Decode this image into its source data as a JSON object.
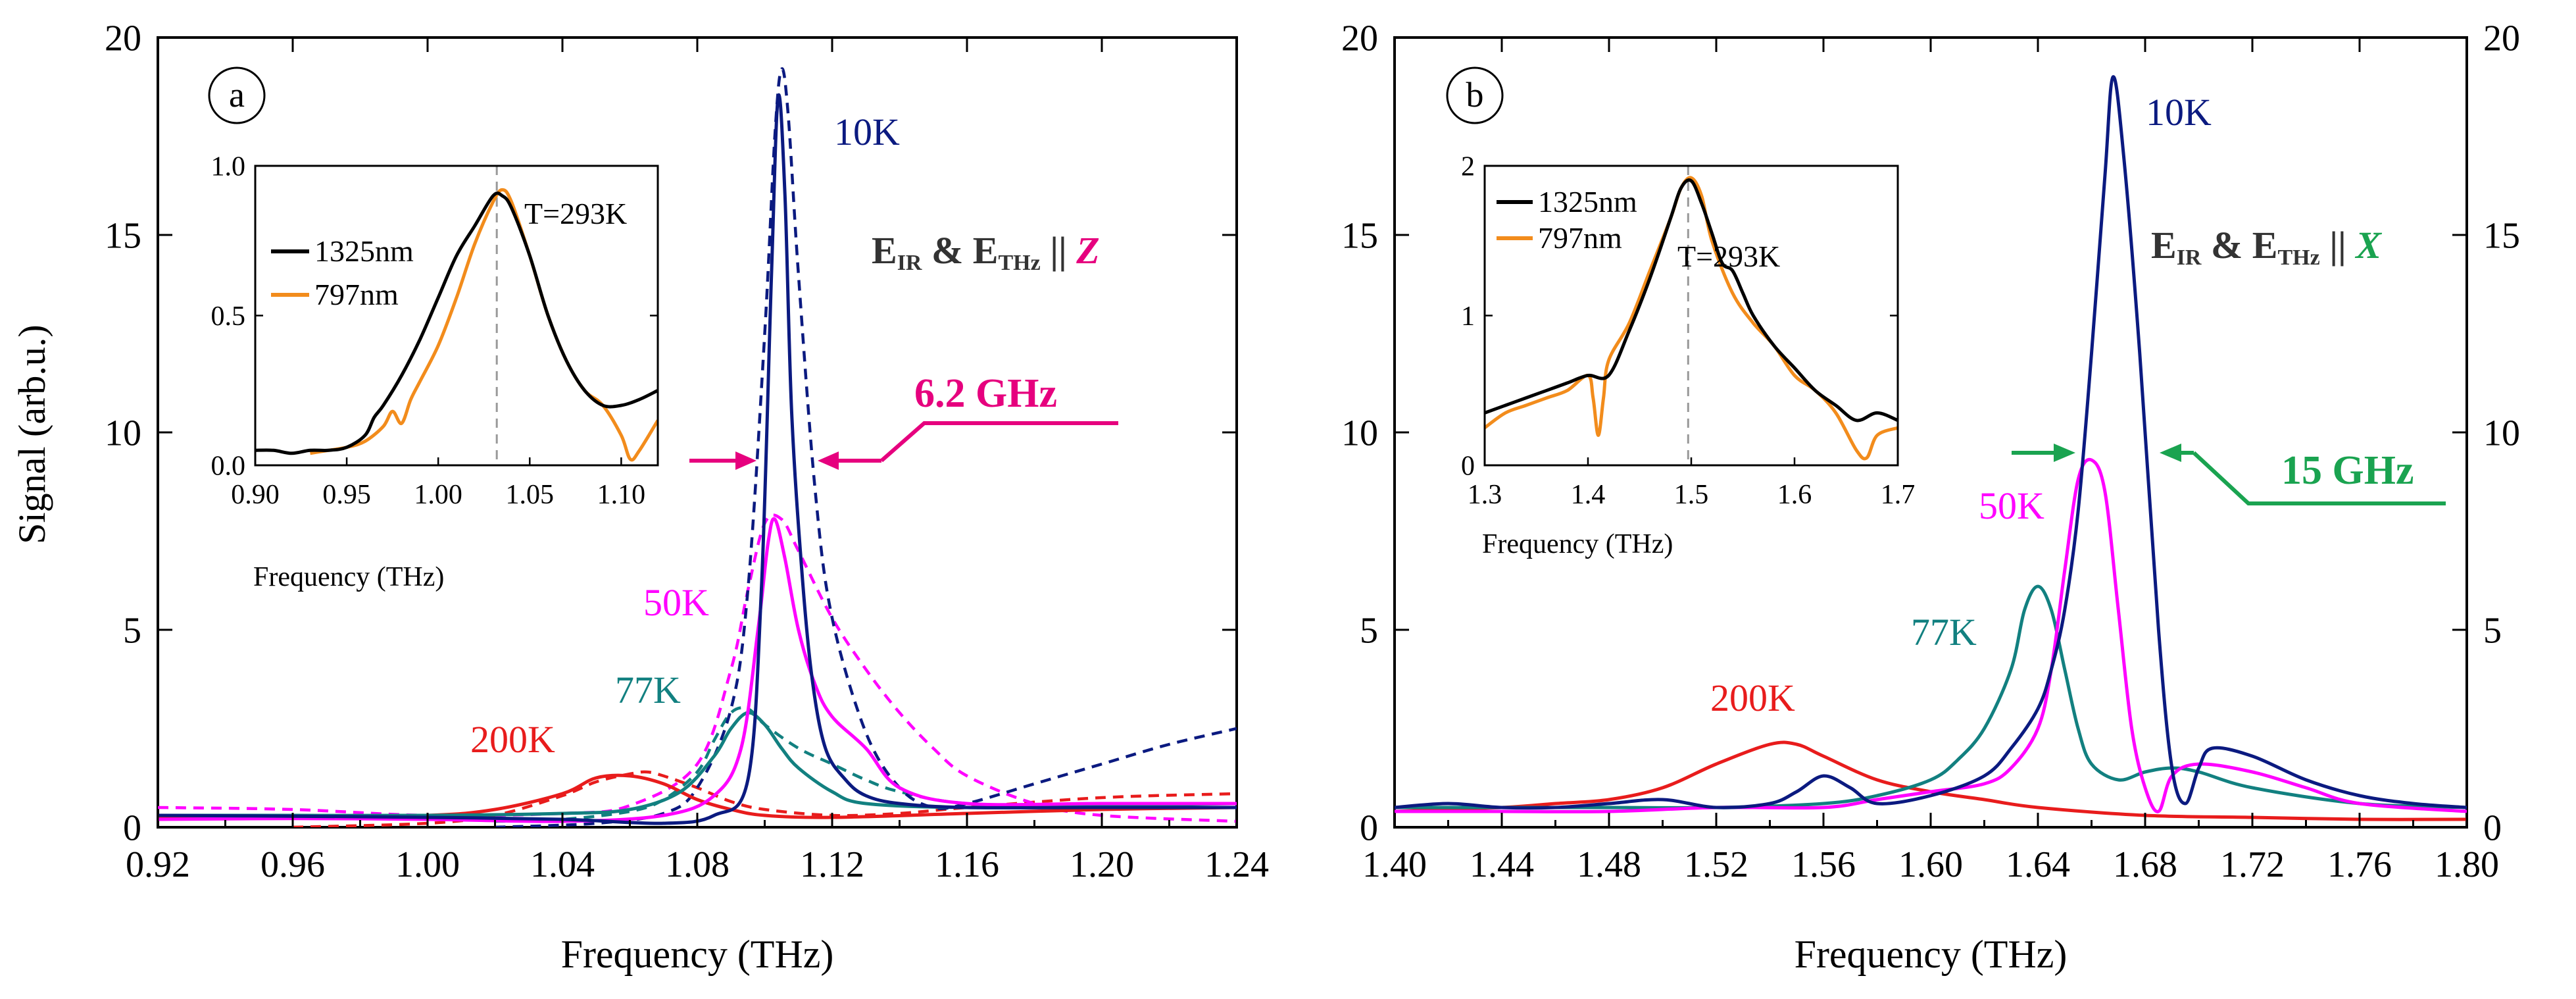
{
  "chart_data": [
    {
      "id": "a",
      "type": "line",
      "panel_label": "a",
      "xlabel": "Frequency (THz)",
      "ylabel": "Signal (arb.u.)",
      "xlim": [
        0.92,
        1.24
      ],
      "ylim": [
        0,
        20
      ],
      "xticks": [
        "0.92",
        "0.96",
        "1.00",
        "1.04",
        "1.08",
        "1.12",
        "1.16",
        "1.20",
        "1.24"
      ],
      "yticks": [
        "0",
        "5",
        "10",
        "15",
        "20"
      ],
      "annotation": {
        "e1": "E",
        "s1": "IR",
        "amp": " & E",
        "s2": "THz",
        "par": " || ",
        "axis": "Z",
        "color": "#e6007e"
      },
      "width_label": "6.2 GHz",
      "width_color": "#e6007e",
      "series": [
        {
          "name": "10K",
          "color": "#0b1a80",
          "dash": false,
          "label": "10K",
          "x": [
            0.92,
            0.96,
            1.0,
            1.04,
            1.07,
            1.085,
            1.095,
            1.099,
            1.102,
            1.104,
            1.106,
            1.108,
            1.111,
            1.114,
            1.118,
            1.124,
            1.13,
            1.14,
            1.16,
            1.2,
            1.24
          ],
          "y": [
            0.3,
            0.28,
            0.25,
            0.2,
            0.1,
            0.3,
            1.2,
            6.0,
            14.0,
            18.5,
            16.0,
            10.5,
            6.5,
            3.8,
            2.0,
            1.2,
            0.8,
            0.6,
            0.5,
            0.5,
            0.5
          ]
        },
        {
          "name": "50K",
          "color": "#ff00ff",
          "dash": false,
          "label": "50K",
          "x": [
            0.92,
            0.96,
            1.0,
            1.04,
            1.07,
            1.085,
            1.093,
            1.098,
            1.101,
            1.103,
            1.106,
            1.11,
            1.115,
            1.12,
            1.13,
            1.14,
            1.16,
            1.2,
            1.24
          ],
          "y": [
            0.2,
            0.22,
            0.2,
            0.15,
            0.3,
            0.8,
            2.0,
            5.0,
            7.2,
            7.8,
            6.8,
            5.0,
            3.6,
            2.8,
            2.0,
            1.0,
            0.6,
            0.6,
            0.6
          ]
        },
        {
          "name": "77K",
          "color": "#128080",
          "dash": false,
          "label": "77K",
          "x": [
            0.92,
            0.96,
            1.0,
            1.04,
            1.06,
            1.075,
            1.085,
            1.09,
            1.095,
            1.1,
            1.105,
            1.11,
            1.12,
            1.13,
            1.16,
            1.2,
            1.24
          ],
          "y": [
            0.3,
            0.3,
            0.3,
            0.35,
            0.45,
            0.9,
            1.8,
            2.5,
            2.9,
            2.6,
            2.0,
            1.5,
            0.9,
            0.6,
            0.5,
            0.55,
            0.6
          ]
        },
        {
          "name": "200K",
          "color": "#e81c1c",
          "dash": false,
          "label": "200K",
          "x": [
            0.92,
            0.96,
            1.0,
            1.02,
            1.04,
            1.05,
            1.06,
            1.07,
            1.08,
            1.09,
            1.1,
            1.12,
            1.16,
            1.2,
            1.24
          ],
          "y": [
            0.25,
            0.25,
            0.3,
            0.45,
            0.85,
            1.25,
            1.3,
            1.1,
            0.7,
            0.45,
            0.3,
            0.25,
            0.35,
            0.45,
            0.5
          ]
        },
        {
          "name": "10K fit",
          "color": "#0b1a80",
          "dash": true,
          "label": "",
          "x": [
            1.02,
            1.05,
            1.07,
            1.08,
            1.09,
            1.095,
            1.1,
            1.103,
            1.105,
            1.107,
            1.11,
            1.115,
            1.12,
            1.13,
            1.14,
            1.15,
            1.16,
            1.18,
            1.2,
            1.22,
            1.24
          ],
          "y": [
            0.0,
            0.1,
            0.35,
            1.0,
            3.0,
            6.0,
            12.5,
            17.5,
            19.2,
            18.0,
            14.0,
            8.5,
            5.3,
            2.4,
            1.0,
            0.5,
            0.6,
            1.1,
            1.6,
            2.1,
            2.5
          ]
        },
        {
          "name": "50K fit",
          "color": "#ff00ff",
          "dash": true,
          "label": "",
          "x": [
            0.92,
            0.96,
            1.0,
            1.04,
            1.06,
            1.08,
            1.09,
            1.095,
            1.1,
            1.105,
            1.11,
            1.12,
            1.13,
            1.14,
            1.15,
            1.16,
            1.18,
            1.2,
            1.24
          ],
          "y": [
            0.5,
            0.45,
            0.3,
            0.35,
            0.55,
            1.6,
            4.0,
            6.0,
            7.7,
            7.8,
            7.0,
            5.3,
            4.0,
            2.9,
            2.0,
            1.3,
            0.6,
            0.3,
            0.15
          ]
        },
        {
          "name": "77K fit",
          "color": "#128080",
          "dash": true,
          "label": "",
          "x": [
            1.02,
            1.04,
            1.06,
            1.07,
            1.08,
            1.085,
            1.09,
            1.095,
            1.1,
            1.11,
            1.12,
            1.13,
            1.14,
            1.16,
            1.2,
            1.24
          ],
          "y": [
            0.15,
            0.2,
            0.4,
            0.7,
            1.4,
            2.2,
            2.9,
            3.0,
            2.6,
            2.0,
            1.6,
            1.2,
            0.9,
            0.6,
            0.5,
            0.5
          ]
        },
        {
          "name": "200K fit",
          "color": "#e81c1c",
          "dash": true,
          "label": "",
          "x": [
            0.96,
            1.0,
            1.02,
            1.04,
            1.05,
            1.06,
            1.065,
            1.07,
            1.08,
            1.09,
            1.1,
            1.12,
            1.14,
            1.16,
            1.2,
            1.24
          ],
          "y": [
            0.0,
            0.1,
            0.3,
            0.8,
            1.15,
            1.35,
            1.4,
            1.3,
            1.0,
            0.65,
            0.45,
            0.3,
            0.35,
            0.5,
            0.75,
            0.85
          ]
        }
      ],
      "inset": {
        "xlabel": "Frequency (THz)",
        "xlim": [
          0.9,
          1.12
        ],
        "ylim": [
          0,
          1.0
        ],
        "xticks": [
          "0.90",
          "0.95",
          "1.00",
          "1.05",
          "1.10"
        ],
        "yticks": [
          "0.0",
          "0.5",
          "1.0"
        ],
        "temp": "T=293K",
        "vline": 1.032,
        "series": [
          {
            "name": "1325nm",
            "color": "#000000",
            "x": [
              0.9,
              0.91,
              0.92,
              0.93,
              0.94,
              0.95,
              0.96,
              0.965,
              0.97,
              0.98,
              0.99,
              1.0,
              1.01,
              1.02,
              1.03,
              1.035,
              1.04,
              1.05,
              1.06,
              1.07,
              1.08,
              1.09,
              1.1,
              1.11,
              1.12
            ],
            "y": [
              0.05,
              0.05,
              0.04,
              0.05,
              0.05,
              0.06,
              0.1,
              0.16,
              0.2,
              0.3,
              0.42,
              0.56,
              0.7,
              0.8,
              0.9,
              0.9,
              0.86,
              0.7,
              0.5,
              0.35,
              0.25,
              0.2,
              0.2,
              0.22,
              0.25
            ]
          },
          {
            "name": "797nm",
            "color": "#f28c1c",
            "x": [
              0.93,
              0.94,
              0.95,
              0.96,
              0.97,
              0.975,
              0.98,
              0.985,
              0.99,
              1.0,
              1.01,
              1.02,
              1.03,
              1.035,
              1.04,
              1.05,
              1.06,
              1.07,
              1.08,
              1.09,
              1.1,
              1.105,
              1.11,
              1.12
            ],
            "y": [
              0.04,
              0.05,
              0.06,
              0.08,
              0.13,
              0.18,
              0.14,
              0.22,
              0.28,
              0.4,
              0.56,
              0.74,
              0.88,
              0.92,
              0.88,
              0.7,
              0.5,
              0.35,
              0.25,
              0.2,
              0.1,
              0.02,
              0.05,
              0.15
            ]
          }
        ]
      }
    },
    {
      "id": "b",
      "type": "line",
      "panel_label": "b",
      "xlabel": "Frequency (THz)",
      "ylabel": "",
      "xlim": [
        1.4,
        1.8
      ],
      "ylim": [
        0,
        20
      ],
      "xticks": [
        "1.40",
        "1.44",
        "1.48",
        "1.52",
        "1.56",
        "1.60",
        "1.64",
        "1.68",
        "1.72",
        "1.76",
        "1.80"
      ],
      "yticks": [
        "0",
        "5",
        "10",
        "15",
        "20"
      ],
      "annotation": {
        "e1": "E",
        "s1": "IR",
        "amp": " & E",
        "s2": "THz",
        "par": " || ",
        "axis": "X",
        "color": "#1aa350"
      },
      "width_label": "15 GHz",
      "width_color": "#1aa350",
      "series": [
        {
          "name": "10K",
          "color": "#0b1a80",
          "dash": false,
          "label": "10K",
          "x": [
            1.4,
            1.42,
            1.44,
            1.46,
            1.48,
            1.5,
            1.52,
            1.54,
            1.55,
            1.56,
            1.57,
            1.58,
            1.6,
            1.62,
            1.63,
            1.64,
            1.645,
            1.65,
            1.655,
            1.66,
            1.665,
            1.668,
            1.672,
            1.678,
            1.685,
            1.69,
            1.695,
            1.7,
            1.705,
            1.72,
            1.74,
            1.76,
            1.78,
            1.8
          ],
          "y": [
            0.5,
            0.6,
            0.5,
            0.5,
            0.6,
            0.7,
            0.5,
            0.6,
            0.9,
            1.3,
            1.0,
            0.6,
            0.8,
            1.3,
            2.0,
            3.0,
            4.0,
            5.5,
            8.0,
            12.0,
            16.5,
            19.0,
            17.0,
            12.0,
            5.0,
            1.5,
            0.6,
            1.5,
            2.0,
            1.8,
            1.2,
            0.8,
            0.6,
            0.5
          ]
        },
        {
          "name": "50K",
          "color": "#ff00ff",
          "dash": false,
          "label": "50K",
          "x": [
            1.4,
            1.44,
            1.48,
            1.52,
            1.56,
            1.58,
            1.6,
            1.62,
            1.63,
            1.64,
            1.645,
            1.65,
            1.655,
            1.66,
            1.665,
            1.67,
            1.675,
            1.68,
            1.685,
            1.69,
            1.7,
            1.72,
            1.74,
            1.76,
            1.8
          ],
          "y": [
            0.4,
            0.4,
            0.4,
            0.5,
            0.5,
            0.7,
            0.9,
            1.1,
            1.5,
            2.5,
            4.0,
            6.5,
            8.8,
            9.3,
            8.5,
            5.5,
            2.5,
            1.0,
            0.4,
            1.3,
            1.6,
            1.4,
            1.0,
            0.6,
            0.4
          ]
        },
        {
          "name": "77K",
          "color": "#128080",
          "dash": false,
          "label": "77K",
          "x": [
            1.4,
            1.44,
            1.48,
            1.52,
            1.56,
            1.58,
            1.6,
            1.61,
            1.62,
            1.63,
            1.635,
            1.64,
            1.645,
            1.65,
            1.655,
            1.66,
            1.67,
            1.68,
            1.69,
            1.7,
            1.72,
            1.76,
            1.8
          ],
          "y": [
            0.5,
            0.5,
            0.5,
            0.5,
            0.6,
            0.8,
            1.2,
            1.7,
            2.5,
            4.0,
            5.5,
            6.1,
            5.5,
            4.0,
            2.5,
            1.6,
            1.2,
            1.4,
            1.5,
            1.4,
            1.0,
            0.6,
            0.5
          ]
        },
        {
          "name": "200K",
          "color": "#e81c1c",
          "dash": false,
          "label": "200K",
          "x": [
            1.4,
            1.44,
            1.46,
            1.48,
            1.5,
            1.52,
            1.54,
            1.55,
            1.56,
            1.58,
            1.6,
            1.62,
            1.64,
            1.68,
            1.72,
            1.76,
            1.8
          ],
          "y": [
            0.4,
            0.5,
            0.6,
            0.7,
            1.0,
            1.6,
            2.1,
            2.1,
            1.8,
            1.2,
            0.9,
            0.7,
            0.5,
            0.3,
            0.25,
            0.2,
            0.2
          ]
        }
      ],
      "inset": {
        "xlabel": "Frequency (THz)",
        "xlim": [
          1.3,
          1.7
        ],
        "ylim": [
          0,
          2
        ],
        "xticks": [
          "1.3",
          "1.4",
          "1.5",
          "1.6",
          "1.7"
        ],
        "yticks": [
          "0",
          "1",
          "2"
        ],
        "temp": "T=293K",
        "vline": 1.497,
        "series": [
          {
            "name": "1325nm",
            "color": "#000000",
            "x": [
              1.3,
              1.32,
              1.34,
              1.36,
              1.38,
              1.4,
              1.42,
              1.44,
              1.46,
              1.48,
              1.49,
              1.5,
              1.51,
              1.52,
              1.53,
              1.54,
              1.55,
              1.56,
              1.58,
              1.6,
              1.62,
              1.64,
              1.66,
              1.68,
              1.7
            ],
            "y": [
              0.35,
              0.4,
              0.45,
              0.5,
              0.55,
              0.6,
              0.6,
              0.9,
              1.25,
              1.65,
              1.85,
              1.9,
              1.75,
              1.55,
              1.35,
              1.3,
              1.15,
              1.0,
              0.8,
              0.65,
              0.5,
              0.4,
              0.3,
              0.35,
              0.3
            ]
          },
          {
            "name": "797nm",
            "color": "#f28c1c",
            "x": [
              1.3,
              1.32,
              1.34,
              1.36,
              1.38,
              1.4,
              1.405,
              1.41,
              1.415,
              1.42,
              1.44,
              1.46,
              1.48,
              1.49,
              1.5,
              1.51,
              1.52,
              1.54,
              1.56,
              1.58,
              1.6,
              1.62,
              1.64,
              1.66,
              1.67,
              1.68,
              1.7
            ],
            "y": [
              0.25,
              0.35,
              0.4,
              0.45,
              0.5,
              0.6,
              0.45,
              0.2,
              0.45,
              0.7,
              0.95,
              1.3,
              1.65,
              1.85,
              1.92,
              1.8,
              1.5,
              1.15,
              0.95,
              0.8,
              0.6,
              0.5,
              0.35,
              0.1,
              0.05,
              0.2,
              0.25
            ]
          }
        ]
      }
    }
  ]
}
